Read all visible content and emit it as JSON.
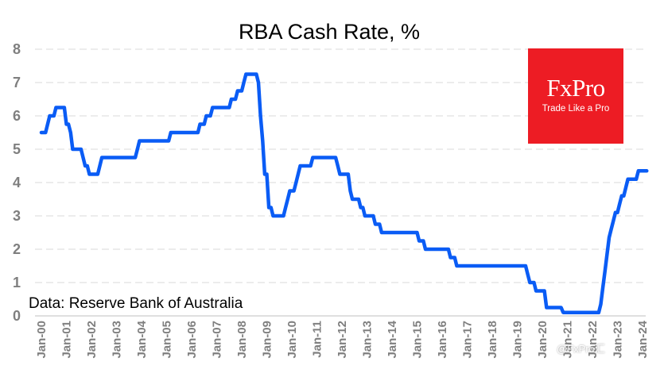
{
  "chart_data": {
    "type": "line",
    "title": "RBA Cash Rate, %",
    "source_note": "Data: Reserve Bank of Australia",
    "x_tick_labels": [
      "Jan-00",
      "Jan-01",
      "Jan-02",
      "Jan-03",
      "Jan-04",
      "Jan-05",
      "Jan-06",
      "Jan-07",
      "Jan-08",
      "Jan-09",
      "Jan-10",
      "Jan-11",
      "Jan-12",
      "Jan-13",
      "Jan-14",
      "Jan-15",
      "Jan-16",
      "Jan-17",
      "Jan-18",
      "Jan-19",
      "Jan-20",
      "Jan-21",
      "Jan-22",
      "Jan-23",
      "Jan-24"
    ],
    "y_ticks": [
      0,
      1,
      2,
      3,
      4,
      5,
      6,
      7,
      8
    ],
    "ylim": [
      0,
      8
    ],
    "xlim": [
      "2000-01",
      "2024-03"
    ],
    "grid": "horizontal dashed",
    "series_color": "#0a5cf5",
    "series": [
      {
        "points": [
          [
            "2000-01",
            5.5
          ],
          [
            "2000-02",
            5.5
          ],
          [
            "2000-03",
            5.5
          ],
          [
            "2000-04",
            5.75
          ],
          [
            "2000-05",
            6.0
          ],
          [
            "2000-06",
            6.0
          ],
          [
            "2000-07",
            6.0
          ],
          [
            "2000-08",
            6.25
          ],
          [
            "2000-09",
            6.25
          ],
          [
            "2000-10",
            6.25
          ],
          [
            "2000-11",
            6.25
          ],
          [
            "2000-12",
            6.25
          ],
          [
            "2001-01",
            5.75
          ],
          [
            "2001-02",
            5.75
          ],
          [
            "2001-03",
            5.5
          ],
          [
            "2001-04",
            5.0
          ],
          [
            "2001-05",
            5.0
          ],
          [
            "2001-06",
            5.0
          ],
          [
            "2001-07",
            5.0
          ],
          [
            "2001-08",
            5.0
          ],
          [
            "2001-09",
            4.75
          ],
          [
            "2001-10",
            4.5
          ],
          [
            "2001-11",
            4.5
          ],
          [
            "2001-12",
            4.25
          ],
          [
            "2002-01",
            4.25
          ],
          [
            "2002-02",
            4.25
          ],
          [
            "2002-03",
            4.25
          ],
          [
            "2002-04",
            4.25
          ],
          [
            "2002-05",
            4.5
          ],
          [
            "2002-06",
            4.75
          ],
          [
            "2002-07",
            4.75
          ],
          [
            "2002-08",
            4.75
          ],
          [
            "2002-09",
            4.75
          ],
          [
            "2002-10",
            4.75
          ],
          [
            "2002-11",
            4.75
          ],
          [
            "2002-12",
            4.75
          ],
          [
            "2003-01",
            4.75
          ],
          [
            "2003-06",
            4.75
          ],
          [
            "2003-10",
            4.75
          ],
          [
            "2003-11",
            5.0
          ],
          [
            "2003-12",
            5.25
          ],
          [
            "2004-01",
            5.25
          ],
          [
            "2004-06",
            5.25
          ],
          [
            "2004-12",
            5.25
          ],
          [
            "2005-01",
            5.25
          ],
          [
            "2005-02",
            5.25
          ],
          [
            "2005-03",
            5.5
          ],
          [
            "2005-06",
            5.5
          ],
          [
            "2005-12",
            5.5
          ],
          [
            "2006-01",
            5.5
          ],
          [
            "2006-04",
            5.5
          ],
          [
            "2006-05",
            5.75
          ],
          [
            "2006-06",
            5.75
          ],
          [
            "2006-07",
            5.75
          ],
          [
            "2006-08",
            6.0
          ],
          [
            "2006-09",
            6.0
          ],
          [
            "2006-10",
            6.0
          ],
          [
            "2006-11",
            6.25
          ],
          [
            "2006-12",
            6.25
          ],
          [
            "2007-01",
            6.25
          ],
          [
            "2007-06",
            6.25
          ],
          [
            "2007-07",
            6.25
          ],
          [
            "2007-08",
            6.5
          ],
          [
            "2007-09",
            6.5
          ],
          [
            "2007-10",
            6.5
          ],
          [
            "2007-11",
            6.75
          ],
          [
            "2007-12",
            6.75
          ],
          [
            "2008-01",
            6.75
          ],
          [
            "2008-02",
            7.0
          ],
          [
            "2008-03",
            7.25
          ],
          [
            "2008-04",
            7.25
          ],
          [
            "2008-05",
            7.25
          ],
          [
            "2008-06",
            7.25
          ],
          [
            "2008-07",
            7.25
          ],
          [
            "2008-08",
            7.25
          ],
          [
            "2008-09",
            7.0
          ],
          [
            "2008-10",
            6.0
          ],
          [
            "2008-11",
            5.25
          ],
          [
            "2008-12",
            4.25
          ],
          [
            "2009-01",
            4.25
          ],
          [
            "2009-02",
            3.25
          ],
          [
            "2009-03",
            3.25
          ],
          [
            "2009-04",
            3.0
          ],
          [
            "2009-05",
            3.0
          ],
          [
            "2009-06",
            3.0
          ],
          [
            "2009-07",
            3.0
          ],
          [
            "2009-08",
            3.0
          ],
          [
            "2009-09",
            3.0
          ],
          [
            "2009-10",
            3.25
          ],
          [
            "2009-11",
            3.5
          ],
          [
            "2009-12",
            3.75
          ],
          [
            "2010-01",
            3.75
          ],
          [
            "2010-02",
            3.75
          ],
          [
            "2010-03",
            4.0
          ],
          [
            "2010-04",
            4.25
          ],
          [
            "2010-05",
            4.5
          ],
          [
            "2010-06",
            4.5
          ],
          [
            "2010-07",
            4.5
          ],
          [
            "2010-08",
            4.5
          ],
          [
            "2010-09",
            4.5
          ],
          [
            "2010-10",
            4.5
          ],
          [
            "2010-11",
            4.75
          ],
          [
            "2010-12",
            4.75
          ],
          [
            "2011-01",
            4.75
          ],
          [
            "2011-06",
            4.75
          ],
          [
            "2011-10",
            4.75
          ],
          [
            "2011-11",
            4.5
          ],
          [
            "2011-12",
            4.25
          ],
          [
            "2012-01",
            4.25
          ],
          [
            "2012-02",
            4.25
          ],
          [
            "2012-03",
            4.25
          ],
          [
            "2012-04",
            4.25
          ],
          [
            "2012-05",
            3.75
          ],
          [
            "2012-06",
            3.5
          ],
          [
            "2012-07",
            3.5
          ],
          [
            "2012-08",
            3.5
          ],
          [
            "2012-09",
            3.5
          ],
          [
            "2012-10",
            3.25
          ],
          [
            "2012-11",
            3.25
          ],
          [
            "2012-12",
            3.0
          ],
          [
            "2013-01",
            3.0
          ],
          [
            "2013-02",
            3.0
          ],
          [
            "2013-03",
            3.0
          ],
          [
            "2013-04",
            3.0
          ],
          [
            "2013-05",
            2.75
          ],
          [
            "2013-06",
            2.75
          ],
          [
            "2013-07",
            2.75
          ],
          [
            "2013-08",
            2.5
          ],
          [
            "2013-09",
            2.5
          ],
          [
            "2013-12",
            2.5
          ],
          [
            "2014-01",
            2.5
          ],
          [
            "2014-06",
            2.5
          ],
          [
            "2014-12",
            2.5
          ],
          [
            "2015-01",
            2.5
          ],
          [
            "2015-02",
            2.25
          ],
          [
            "2015-03",
            2.25
          ],
          [
            "2015-04",
            2.25
          ],
          [
            "2015-05",
            2.0
          ],
          [
            "2015-06",
            2.0
          ],
          [
            "2015-12",
            2.0
          ],
          [
            "2016-01",
            2.0
          ],
          [
            "2016-04",
            2.0
          ],
          [
            "2016-05",
            1.75
          ],
          [
            "2016-06",
            1.75
          ],
          [
            "2016-07",
            1.75
          ],
          [
            "2016-08",
            1.5
          ],
          [
            "2016-09",
            1.5
          ],
          [
            "2016-12",
            1.5
          ],
          [
            "2017-01",
            1.5
          ],
          [
            "2017-12",
            1.5
          ],
          [
            "2018-01",
            1.5
          ],
          [
            "2018-12",
            1.5
          ],
          [
            "2019-01",
            1.5
          ],
          [
            "2019-05",
            1.5
          ],
          [
            "2019-06",
            1.25
          ],
          [
            "2019-07",
            1.0
          ],
          [
            "2019-08",
            1.0
          ],
          [
            "2019-09",
            1.0
          ],
          [
            "2019-10",
            0.75
          ],
          [
            "2019-11",
            0.75
          ],
          [
            "2019-12",
            0.75
          ],
          [
            "2020-01",
            0.75
          ],
          [
            "2020-02",
            0.75
          ],
          [
            "2020-03",
            0.25
          ],
          [
            "2020-04",
            0.25
          ],
          [
            "2020-06",
            0.25
          ],
          [
            "2020-09",
            0.25
          ],
          [
            "2020-10",
            0.25
          ],
          [
            "2020-11",
            0.1
          ],
          [
            "2020-12",
            0.1
          ],
          [
            "2021-01",
            0.1
          ],
          [
            "2021-06",
            0.1
          ],
          [
            "2021-12",
            0.1
          ],
          [
            "2022-01",
            0.1
          ],
          [
            "2022-04",
            0.1
          ],
          [
            "2022-05",
            0.35
          ],
          [
            "2022-06",
            0.85
          ],
          [
            "2022-07",
            1.35
          ],
          [
            "2022-08",
            1.85
          ],
          [
            "2022-09",
            2.35
          ],
          [
            "2022-10",
            2.6
          ],
          [
            "2022-11",
            2.85
          ],
          [
            "2022-12",
            3.1
          ],
          [
            "2023-01",
            3.1
          ],
          [
            "2023-02",
            3.35
          ],
          [
            "2023-03",
            3.6
          ],
          [
            "2023-04",
            3.6
          ],
          [
            "2023-05",
            3.85
          ],
          [
            "2023-06",
            4.1
          ],
          [
            "2023-07",
            4.1
          ],
          [
            "2023-08",
            4.1
          ],
          [
            "2023-09",
            4.1
          ],
          [
            "2023-10",
            4.1
          ],
          [
            "2023-11",
            4.35
          ],
          [
            "2023-12",
            4.35
          ],
          [
            "2024-01",
            4.35
          ],
          [
            "2024-02",
            4.35
          ],
          [
            "2024-03",
            4.35
          ]
        ]
      }
    ]
  },
  "logo": {
    "brand": "FxPro",
    "tagline": "Trade Like a Pro",
    "background": "#ed1c24"
  },
  "watermark": {
    "text": "@FxPro汇"
  }
}
